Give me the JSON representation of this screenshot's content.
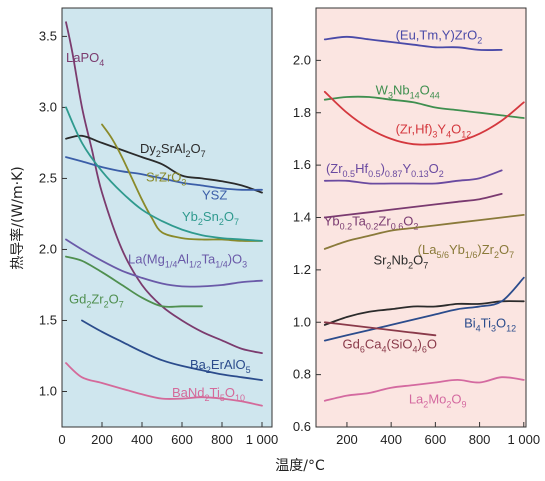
{
  "chart_data": [
    {
      "type": "line",
      "panel": "left",
      "background": "#cfe6ee",
      "xlabel": "温度/°C",
      "ylabel": "热导率/(W/m·K)",
      "xlim": [
        0,
        1050
      ],
      "ylim": [
        0.75,
        3.7
      ],
      "xticks": [
        0,
        200,
        400,
        600,
        800,
        1000
      ],
      "xtick_labels": [
        "0",
        "200",
        "400",
        "600",
        "800",
        "1 000"
      ],
      "yticks": [
        1.0,
        1.5,
        2.0,
        2.5,
        3.0,
        3.5
      ],
      "ytick_labels": [
        "1.0",
        "1.5",
        "2.0",
        "2.5",
        "3.0",
        "3.5"
      ],
      "series": [
        {
          "name": "LaPO4",
          "label_main": "LaPO",
          "label_sub": "4",
          "label_at": [
            20,
            3.32
          ],
          "color": "#7b3b6e",
          "x": [
            20,
            50,
            100,
            150,
            200,
            300,
            400,
            500,
            600,
            700,
            800,
            900,
            1000
          ],
          "y": [
            3.6,
            3.4,
            3.0,
            2.7,
            2.4,
            2.0,
            1.75,
            1.6,
            1.5,
            1.42,
            1.36,
            1.3,
            1.27
          ]
        },
        {
          "name": "Dy2SrAl2O7",
          "label_main": "Dy",
          "label_sub": "2",
          "label_main2": "SrAl",
          "label_sub2": "2",
          "label_main3": "O",
          "label_sub3": "7",
          "label_at": [
            390,
            2.68
          ],
          "color": "#2b2b2b",
          "x": [
            20,
            100,
            200,
            300,
            400,
            500,
            600,
            700,
            800,
            900,
            1000
          ],
          "y": [
            2.78,
            2.8,
            2.75,
            2.7,
            2.65,
            2.6,
            2.52,
            2.5,
            2.48,
            2.45,
            2.4
          ]
        },
        {
          "name": "YSZ",
          "label_main": "YSZ",
          "label_at": [
            700,
            2.35
          ],
          "color": "#3b5ea8",
          "x": [
            20,
            100,
            200,
            300,
            400,
            500,
            600,
            700,
            800,
            900,
            1000
          ],
          "y": [
            2.65,
            2.62,
            2.58,
            2.55,
            2.53,
            2.5,
            2.47,
            2.45,
            2.43,
            2.42,
            2.42
          ]
        },
        {
          "name": "SrZrO3",
          "label_main": "SrZrO",
          "label_sub": "3",
          "label_at": [
            420,
            2.48
          ],
          "color": "#8a8a2a",
          "x": [
            200,
            250,
            300,
            350,
            400,
            450,
            500,
            600,
            700,
            800,
            900,
            1000
          ],
          "y": [
            2.88,
            2.78,
            2.65,
            2.5,
            2.35,
            2.22,
            2.12,
            2.08,
            2.07,
            2.07,
            2.06,
            2.06
          ]
        },
        {
          "name": "Yb2Sn2O7",
          "label_main": "Yb",
          "label_sub": "2",
          "label_main2": "Sn",
          "label_sub2": "2",
          "label_main3": "O",
          "label_sub3": "7",
          "label_at": [
            600,
            2.2
          ],
          "color": "#2f9a8e",
          "x": [
            20,
            100,
            200,
            300,
            400,
            500,
            600,
            700,
            800,
            900,
            1000
          ],
          "y": [
            3.0,
            2.75,
            2.55,
            2.4,
            2.28,
            2.2,
            2.14,
            2.1,
            2.08,
            2.07,
            2.06
          ]
        },
        {
          "name": "La(Mg1/4Al1/2Ta1/4)O3",
          "label_main": "La(Mg",
          "label_sub": "1/4",
          "label_main2": "Al",
          "label_sub2": "1/2",
          "label_main3": "Ta",
          "label_sub3": "1/4",
          "label_main4": ")O",
          "label_sub4": "3",
          "label_at": [
            330,
            1.9
          ],
          "color": "#6a5aa8",
          "x": [
            20,
            100,
            200,
            300,
            400,
            500,
            600,
            700,
            800,
            900,
            1000
          ],
          "y": [
            2.07,
            2.0,
            1.92,
            1.85,
            1.8,
            1.76,
            1.74,
            1.74,
            1.75,
            1.77,
            1.78
          ]
        },
        {
          "name": "Gd2Zr2O7",
          "label_main": "Gd",
          "label_sub": "2",
          "label_main2": "Zr",
          "label_sub2": "2",
          "label_main3": "O",
          "label_sub3": "7",
          "label_at": [
            35,
            1.62
          ],
          "color": "#4f8f4f",
          "x": [
            20,
            100,
            200,
            300,
            400,
            500,
            600,
            700
          ],
          "y": [
            1.95,
            1.92,
            1.84,
            1.75,
            1.66,
            1.6,
            1.6,
            1.6
          ]
        },
        {
          "name": "Ba2ErAlO5",
          "label_main": "Ba",
          "label_sub": "2",
          "label_main2": "ErAlO",
          "label_sub2": "5",
          "label_at": [
            640,
            1.16
          ],
          "color": "#2b4c8c",
          "x": [
            100,
            200,
            300,
            400,
            500,
            600,
            700,
            800,
            900,
            1000
          ],
          "y": [
            1.5,
            1.42,
            1.35,
            1.28,
            1.22,
            1.18,
            1.15,
            1.12,
            1.1,
            1.08
          ]
        },
        {
          "name": "BaNd2Ti5O10",
          "label_main": "BaNd",
          "label_sub": "2",
          "label_main2": "Ti",
          "label_sub2": "5",
          "label_main3": "O",
          "label_sub3": "10",
          "label_at": [
            550,
            0.96
          ],
          "color": "#d46a9a",
          "x": [
            20,
            100,
            200,
            300,
            400,
            500,
            600,
            700,
            800,
            900,
            1000
          ],
          "y": [
            1.2,
            1.1,
            1.06,
            1.02,
            0.98,
            0.95,
            0.95,
            0.96,
            0.95,
            0.93,
            0.9
          ]
        }
      ]
    },
    {
      "type": "line",
      "panel": "right",
      "background": "#fbe5e1",
      "xlim": [
        60,
        1010
      ],
      "ylim": [
        0.6,
        2.2
      ],
      "xticks": [
        200,
        400,
        600,
        800,
        1000
      ],
      "xtick_labels": [
        "200",
        "400",
        "600",
        "800",
        "1 000"
      ],
      "yticks": [
        0.6,
        0.8,
        1.0,
        1.2,
        1.4,
        1.6,
        1.8,
        2.0
      ],
      "ytick_labels": [
        "0.6",
        "0.8",
        "1.0",
        "1.2",
        "1.4",
        "1.6",
        "1.8",
        "2.0"
      ],
      "series": [
        {
          "name": "(Eu,Tm,Y)ZrO2",
          "label_main": "(Eu,Tm,Y)ZrO",
          "label_sub": "2",
          "label_at": [
            420,
            2.08
          ],
          "color": "#4a4aa8",
          "x": [
            100,
            200,
            300,
            400,
            500,
            600,
            700,
            800,
            900
          ],
          "y": [
            2.08,
            2.09,
            2.08,
            2.07,
            2.06,
            2.05,
            2.05,
            2.04,
            2.04
          ]
        },
        {
          "name": "W3Nb14O44",
          "label_main": "W",
          "label_sub": "3",
          "label_main2": "Nb",
          "label_sub2": "14",
          "label_main3": "O",
          "label_sub3": "44",
          "label_at": [
            330,
            1.87
          ],
          "color": "#3f8f4f",
          "x": [
            100,
            200,
            300,
            400,
            500,
            600,
            700,
            800,
            900,
            1000
          ],
          "y": [
            1.85,
            1.86,
            1.86,
            1.85,
            1.84,
            1.82,
            1.81,
            1.8,
            1.79,
            1.78
          ]
        },
        {
          "name": "(Zr,Hf)3Y4O12",
          "label_main": "(Zr,Hf)",
          "label_sub": "3",
          "label_main2": "Y",
          "label_sub2": "4",
          "label_main3": "O",
          "label_sub3": "12",
          "label_at": [
            420,
            1.72
          ],
          "color": "#d4383e",
          "x": [
            100,
            200,
            300,
            400,
            500,
            600,
            700,
            800,
            900,
            1000
          ],
          "y": [
            1.88,
            1.8,
            1.74,
            1.7,
            1.68,
            1.68,
            1.69,
            1.72,
            1.77,
            1.84
          ]
        },
        {
          "name": "(Zr0.5Hf0.5)0.87Y0.13O2",
          "label_main": "(Zr",
          "label_sub": "0.5",
          "label_main2": "Hf",
          "label_sub2": "0.5",
          "label_main3": ")",
          "label_sub3": "0.87",
          "label_main4": "Y",
          "label_sub4": "0.13",
          "label_main5": "O",
          "label_sub5": "2",
          "label_at": [
            105,
            1.57
          ],
          "color": "#6a4aa0",
          "x": [
            100,
            200,
            300,
            400,
            500,
            600,
            700,
            800,
            900
          ],
          "y": [
            1.54,
            1.54,
            1.53,
            1.53,
            1.53,
            1.53,
            1.54,
            1.55,
            1.58
          ]
        },
        {
          "name": "Yb0.2Ta0.2Zr0.6O2",
          "label_main": "Yb",
          "label_sub": "0.2",
          "label_main2": "Ta",
          "label_sub2": "0.2",
          "label_main3": "Zr",
          "label_sub3": "0.6",
          "label_main4": "O",
          "label_sub4": "2",
          "label_at": [
            95,
            1.37
          ],
          "color": "#7a3a70",
          "x": [
            100,
            200,
            300,
            400,
            500,
            600,
            700,
            800,
            900
          ],
          "y": [
            1.4,
            1.41,
            1.42,
            1.43,
            1.44,
            1.45,
            1.46,
            1.47,
            1.49
          ]
        },
        {
          "name": "(La5/6Yb1/6)Zr2O7",
          "label_main": "(La",
          "label_sub": "5/6",
          "label_main2": "Yb",
          "label_sub2": "1/6",
          "label_main3": ")Zr",
          "label_sub3": "2",
          "label_main4": "O",
          "label_sub4": "7",
          "label_at": [
            520,
            1.26
          ],
          "color": "#8a7a3a",
          "x": [
            100,
            200,
            300,
            400,
            500,
            600,
            700,
            800,
            900,
            1000
          ],
          "y": [
            1.28,
            1.31,
            1.33,
            1.35,
            1.36,
            1.37,
            1.38,
            1.39,
            1.4,
            1.41
          ]
        },
        {
          "name": "Sr2Nb2O7",
          "label_main": "Sr",
          "label_sub": "2",
          "label_main2": "Nb",
          "label_sub2": "2",
          "label_main3": "O",
          "label_sub3": "7",
          "label_at": [
            320,
            1.22
          ],
          "color": "#2b2b2b",
          "x": [
            100,
            200,
            300,
            400,
            500,
            600,
            700,
            800,
            900,
            1000
          ],
          "y": [
            0.99,
            1.02,
            1.04,
            1.05,
            1.06,
            1.06,
            1.07,
            1.07,
            1.08,
            1.08
          ]
        },
        {
          "name": "Bi4Ti3O12",
          "label_main": "Bi",
          "label_sub": "4",
          "label_main2": "Ti",
          "label_sub2": "3",
          "label_main3": "O",
          "label_sub3": "12",
          "label_at": [
            730,
            0.98
          ],
          "color": "#2b4c8c",
          "x": [
            100,
            200,
            300,
            400,
            500,
            600,
            700,
            800,
            900,
            1000
          ],
          "y": [
            0.93,
            0.95,
            0.97,
            0.99,
            1.01,
            1.03,
            1.05,
            1.06,
            1.08,
            1.17
          ]
        },
        {
          "name": "Gd6Ca4(SiO4)6O",
          "label_main": "Gd",
          "label_sub": "6",
          "label_main2": "Ca",
          "label_sub2": "4",
          "label_main3": "(SiO",
          "label_sub3": "4",
          "label_main4": ")",
          "label_sub4": "6",
          "label_main5": "O",
          "label_at": [
            180,
            0.9
          ],
          "color": "#8a3a4a",
          "x": [
            100,
            200,
            300,
            400,
            500,
            600
          ],
          "y": [
            1.0,
            0.99,
            0.98,
            0.97,
            0.96,
            0.95
          ]
        },
        {
          "name": "La2Mo2O9",
          "label_main": "La",
          "label_sub": "2",
          "label_main2": "Mo",
          "label_sub2": "2",
          "label_main3": "O",
          "label_sub3": "9",
          "label_at": [
            480,
            0.69
          ],
          "color": "#d46aa0",
          "x": [
            100,
            200,
            300,
            400,
            500,
            600,
            700,
            800,
            900,
            1000
          ],
          "y": [
            0.7,
            0.72,
            0.73,
            0.75,
            0.76,
            0.77,
            0.78,
            0.77,
            0.79,
            0.78
          ]
        }
      ]
    }
  ]
}
